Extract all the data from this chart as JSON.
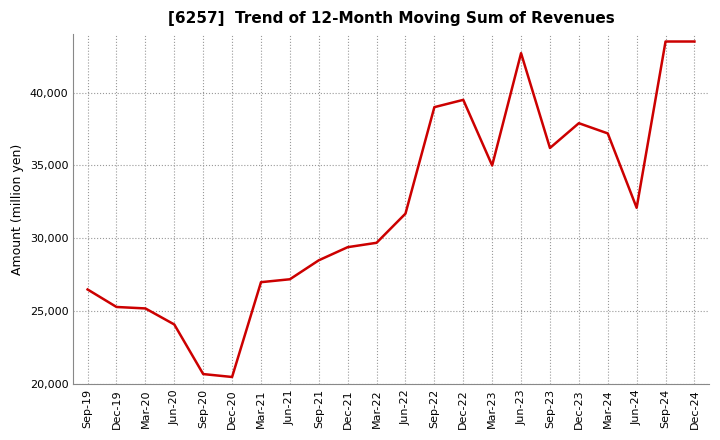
{
  "title": "[6257]  Trend of 12-Month Moving Sum of Revenues",
  "ylabel": "Amount (million yen)",
  "line_color": "#cc0000",
  "line_width": 1.8,
  "background_color": "#ffffff",
  "plot_bg_color": "#ffffff",
  "grid_color": "#999999",
  "ylim": [
    20000,
    44000
  ],
  "yticks": [
    20000,
    25000,
    30000,
    35000,
    40000
  ],
  "labels": [
    "Sep-19",
    "Dec-19",
    "Mar-20",
    "Jun-20",
    "Sep-20",
    "Dec-20",
    "Mar-21",
    "Jun-21",
    "Sep-21",
    "Dec-21",
    "Mar-22",
    "Jun-22",
    "Sep-22",
    "Dec-22",
    "Mar-23",
    "Jun-23",
    "Sep-23",
    "Dec-23",
    "Mar-24",
    "Jun-24",
    "Sep-24",
    "Dec-24"
  ],
  "values": [
    26500,
    25300,
    25200,
    24100,
    20700,
    20500,
    27000,
    27200,
    28500,
    29400,
    29700,
    31700,
    39000,
    39500,
    35000,
    42700,
    36200,
    37900,
    37200,
    32100,
    43500,
    43500
  ],
  "title_fontsize": 11,
  "ylabel_fontsize": 9,
  "tick_fontsize": 8
}
